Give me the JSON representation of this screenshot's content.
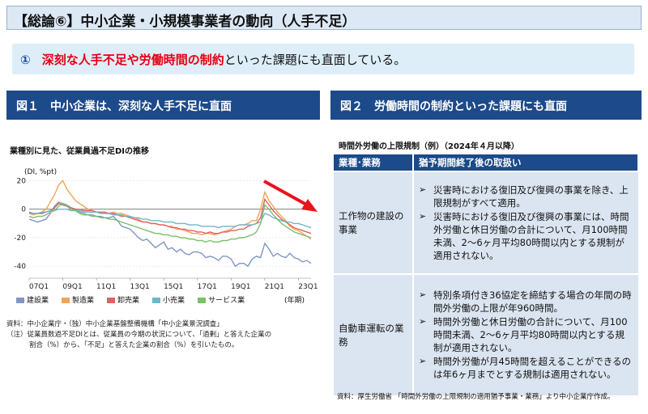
{
  "header": {
    "title": "【総論⑥】中小企業・小規模事業者の動向（人手不足）"
  },
  "summary": {
    "number": "①",
    "highlight": "深刻な人手不足や労働時間の制約",
    "rest": "といった課題にも直面している。"
  },
  "figure1": {
    "heading": "図１　中小企業は、深刻な人手不足に直面",
    "source": "資料：中小企業庁・（独）中小企業基盤整備機構「中小企業景況調査」",
    "note1": "（注）従業員数過不足DIとは、従業員の今期の状況について、「過剰」と答えた企業の",
    "note2": "割合（%）から、「不足」と答えた企業の割合（%）を引いたもの。"
  },
  "chart_data": {
    "type": "line",
    "title": "業種別に見た、従業員過不足DIの推移",
    "ylabel": "(DI, %pt)",
    "xlabel": "(年期)",
    "ylim": [
      -45,
      22
    ],
    "yticks": [
      20,
      0,
      -20,
      -40
    ],
    "x_tick_labels": [
      "07Q1",
      "09Q1",
      "11Q1",
      "13Q1",
      "15Q1",
      "17Q1",
      "19Q1",
      "21Q1",
      "23Q1"
    ],
    "x_tick_index": [
      0,
      8,
      16,
      24,
      32,
      40,
      48,
      56,
      64
    ],
    "n_points": 68,
    "series": [
      {
        "name": "建設業",
        "color": "#8096c4",
        "values": [
          -7,
          -8,
          -9,
          -8,
          -7,
          -3,
          2,
          5,
          4,
          3,
          1,
          0,
          -2,
          -3,
          -4,
          -4,
          -5,
          -5,
          -6,
          -6,
          -5,
          -8,
          -12,
          -13,
          -14,
          -17,
          -20,
          -22,
          -21,
          -24,
          -27,
          -25,
          -23,
          -28,
          -27,
          -30,
          -28,
          -31,
          -32,
          -30,
          -30,
          -31,
          -34,
          -33,
          -34,
          -36,
          -33,
          -33,
          -35,
          -40,
          -38,
          -38,
          -40,
          -35,
          -33,
          -34,
          -24,
          -28,
          -33,
          -31,
          -33,
          -34,
          -31,
          -34,
          -35,
          -37,
          -36,
          -38
        ]
      },
      {
        "name": "製造業",
        "color": "#f0a45a",
        "values": [
          -3,
          -4,
          -3,
          -2,
          0,
          5,
          10,
          17,
          20,
          14,
          10,
          6,
          4,
          2,
          0,
          -1,
          -2,
          -2,
          -3,
          -3,
          -2,
          -3,
          -3,
          -4,
          -5,
          -6,
          -7,
          -9,
          -9,
          -10,
          -10,
          -11,
          -11,
          -12,
          -12,
          -14,
          -14,
          -15,
          -16,
          -17,
          -17,
          -18,
          -17,
          -17,
          -18,
          -17,
          -16,
          -15,
          -14,
          -12,
          -11,
          -11,
          -10,
          -8,
          -8,
          0,
          12,
          6,
          2,
          -2,
          -5,
          -8,
          -12,
          -14,
          -15,
          -17,
          -19,
          -21
        ]
      },
      {
        "name": "卸売業",
        "color": "#e26060",
        "values": [
          -2,
          -3,
          -3,
          -3,
          -2,
          -1,
          1,
          4,
          3,
          2,
          1,
          0,
          0,
          -1,
          -1,
          -1,
          -2,
          -2,
          -2,
          -3,
          -3,
          -4,
          -5,
          -5,
          -6,
          -7,
          -8,
          -9,
          -9,
          -10,
          -10,
          -11,
          -11,
          -12,
          -13,
          -13,
          -14,
          -14,
          -15,
          -15,
          -16,
          -16,
          -17,
          -16,
          -17,
          -17,
          -16,
          -16,
          -15,
          -15,
          -14,
          -14,
          -12,
          -11,
          -10,
          -6,
          7,
          3,
          -1,
          -4,
          -7,
          -9,
          -11,
          -13,
          -14,
          -15,
          -16,
          -17
        ]
      },
      {
        "name": "小売業",
        "color": "#6fb5cc",
        "values": [
          -3,
          -3,
          -3,
          -2,
          -2,
          -1,
          -1,
          0,
          0,
          0,
          -1,
          -1,
          -1,
          -2,
          -2,
          -2,
          -2,
          -3,
          -3,
          -3,
          -4,
          -4,
          -4,
          -5,
          -5,
          -6,
          -6,
          -7,
          -7,
          -8,
          -8,
          -8,
          -9,
          -9,
          -9,
          -10,
          -10,
          -10,
          -11,
          -11,
          -11,
          -12,
          -12,
          -12,
          -12,
          -13,
          -12,
          -12,
          -12,
          -12,
          -11,
          -11,
          -11,
          -11,
          -10,
          -9,
          -3,
          -4,
          -6,
          -7,
          -8,
          -9,
          -9,
          -10,
          -10,
          -11,
          -12,
          -13
        ]
      },
      {
        "name": "サービス業",
        "color": "#7bbf6a",
        "values": [
          -5,
          -6,
          -5,
          -5,
          -4,
          -2,
          -1,
          2,
          4,
          2,
          0,
          -1,
          -3,
          -4,
          -4,
          -5,
          -5,
          -6,
          -6,
          -7,
          -7,
          -8,
          -9,
          -10,
          -11,
          -12,
          -13,
          -14,
          -15,
          -16,
          -17,
          -17,
          -18,
          -18,
          -19,
          -19,
          -20,
          -20,
          -21,
          -21,
          -22,
          -22,
          -23,
          -22,
          -23,
          -23,
          -22,
          -22,
          -21,
          -21,
          -20,
          -20,
          -19,
          -18,
          -16,
          -10,
          3,
          0,
          -4,
          -7,
          -10,
          -12,
          -14,
          -16,
          -17,
          -18,
          -19,
          -20
        ]
      }
    ]
  },
  "figure2": {
    "heading": "図２　労働時間の制約といった課題にも直面",
    "table_title": "時間外労働の上限規制（例）（2024年４月以降）",
    "col1": "業種･業務",
    "col2": "猶予期間終了後の取扱い",
    "rows": [
      {
        "category": "工作物の建設の事業",
        "items": [
          "災害時における復旧及び復興の事業を除き、上限規制がすべて適用。",
          "災害時における復旧及び復興の事業には、時間外労働と休日労働の合計について、月100時間未満、2～6ヶ月平均80時間以内とする規制が適用されない。"
        ]
      },
      {
        "category": "自動車運転の業務",
        "items": [
          "特別条項付き36協定を締結する場合の年間の時間外労働の上限が年960時間。",
          "時間外労働と休日労働の合計について、月100時間未満、2～6ヶ月平均80時間以内とする規制が適用されない。",
          "時間外労働が月45時間を超えることができるのは年6ヶ月までとする規制は適用されない。"
        ]
      }
    ],
    "source": "資料：厚生労働省 「時間外労働の上限規制の適用猶予事業・業務」より中小企業庁作成。"
  },
  "colors": {
    "navy": "#1c4a8a",
    "accent_red": "#e60012",
    "arrow": "#e8141c"
  }
}
